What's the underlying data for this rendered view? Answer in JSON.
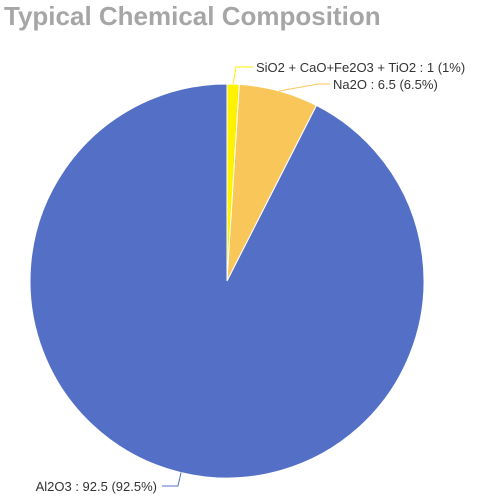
{
  "chart_data": {
    "type": "pie",
    "title": "Typical Chemical Composition",
    "slices": [
      {
        "name": "SiO2 + CaO+Fe2O3 + TiO2",
        "value": 1,
        "percent_label": "1%",
        "label": "SiO2 + CaO+Fe2O3 + TiO2 : 1 (1%)",
        "color": "#FFF200"
      },
      {
        "name": "Na2O",
        "value": 6.5,
        "percent_label": "6.5%",
        "label": "Na2O : 6.5 (6.5%)",
        "color": "#F9C65A"
      },
      {
        "name": "Al2O3",
        "value": 92.5,
        "percent_label": "92.5%",
        "label": "Al2O3 : 92.5 (92.5%)",
        "color": "#5470C6"
      }
    ],
    "start_angle": "12 o'clock",
    "direction": "clockwise",
    "legend": "none",
    "label_lines": true
  }
}
